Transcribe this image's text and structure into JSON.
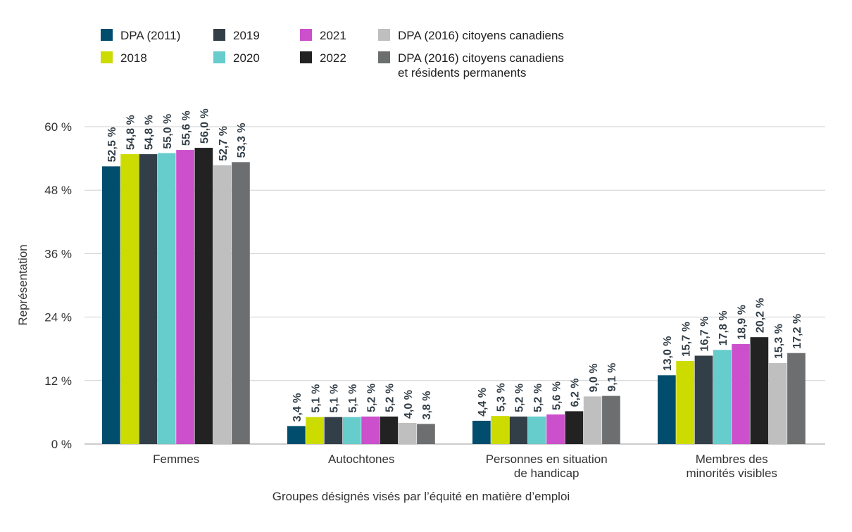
{
  "chart_data": {
    "type": "bar",
    "ylabel": "Représentation",
    "xlabel": "Groupes désignés visés par l’équité en matière d’emploi",
    "ylim": [
      0,
      60
    ],
    "yticks": [
      0,
      12,
      24,
      36,
      48,
      60
    ],
    "ytick_labels": [
      "0 %",
      "12 %",
      "24 %",
      "36 %",
      "48 %",
      "60 %"
    ],
    "grid": true,
    "legend_position": "top",
    "categories": [
      [
        "Femmes"
      ],
      [
        "Autochtones"
      ],
      [
        "Personnes en situation",
        "de handicap"
      ],
      [
        "Membres des",
        "minorités visibles"
      ]
    ],
    "series": [
      {
        "name": "DPA (2011)",
        "color": "#004d6e",
        "values": [
          52.5,
          3.4,
          4.4,
          13.0
        ],
        "labels": [
          "52,5 %",
          "3,4 %",
          "4,4 %",
          "13,0 %"
        ]
      },
      {
        "name": "2018",
        "color": "#ccdb00",
        "values": [
          54.8,
          5.1,
          5.3,
          15.7
        ],
        "labels": [
          "54,8 %",
          "5,1 %",
          "5,3 %",
          "15,7 %"
        ]
      },
      {
        "name": "2019",
        "color": "#333f48",
        "values": [
          54.8,
          5.1,
          5.2,
          16.7
        ],
        "labels": [
          "54,8 %",
          "5,1 %",
          "5,2 %",
          "16,7 %"
        ]
      },
      {
        "name": "2020",
        "color": "#66cccc",
        "values": [
          55.0,
          5.1,
          5.2,
          17.8
        ],
        "labels": [
          "55,0 %",
          "5,1 %",
          "5,2 %",
          "17,8 %"
        ]
      },
      {
        "name": "2021",
        "color": "#cc4fcc",
        "values": [
          55.6,
          5.2,
          5.6,
          18.9
        ],
        "labels": [
          "55,6 %",
          "5,2 %",
          "5,6 %",
          "18,9 %"
        ]
      },
      {
        "name": "2022",
        "color": "#222222",
        "values": [
          56.0,
          5.2,
          6.2,
          20.2
        ],
        "labels": [
          "56,0 %",
          "5,2 %",
          "6,2 %",
          "20,2 %"
        ]
      },
      {
        "name": "DPA (2016) citoyens canadiens",
        "color": "#bfbfbf",
        "values": [
          52.7,
          4.0,
          9.0,
          15.3
        ],
        "labels": [
          "52,7 %",
          "4,0 %",
          "9,0 %",
          "15,3 %"
        ]
      },
      {
        "name": "DPA (2016) citoyens canadiens et résidents permanents",
        "name_lines": [
          "DPA (2016) citoyens canadiens",
          "et résidents permanents"
        ],
        "color": "#6d6e6f",
        "values": [
          53.3,
          3.8,
          9.1,
          17.2
        ],
        "labels": [
          "53,3 %",
          "3,8 %",
          "9,1 %",
          "17,2 %"
        ]
      }
    ]
  }
}
